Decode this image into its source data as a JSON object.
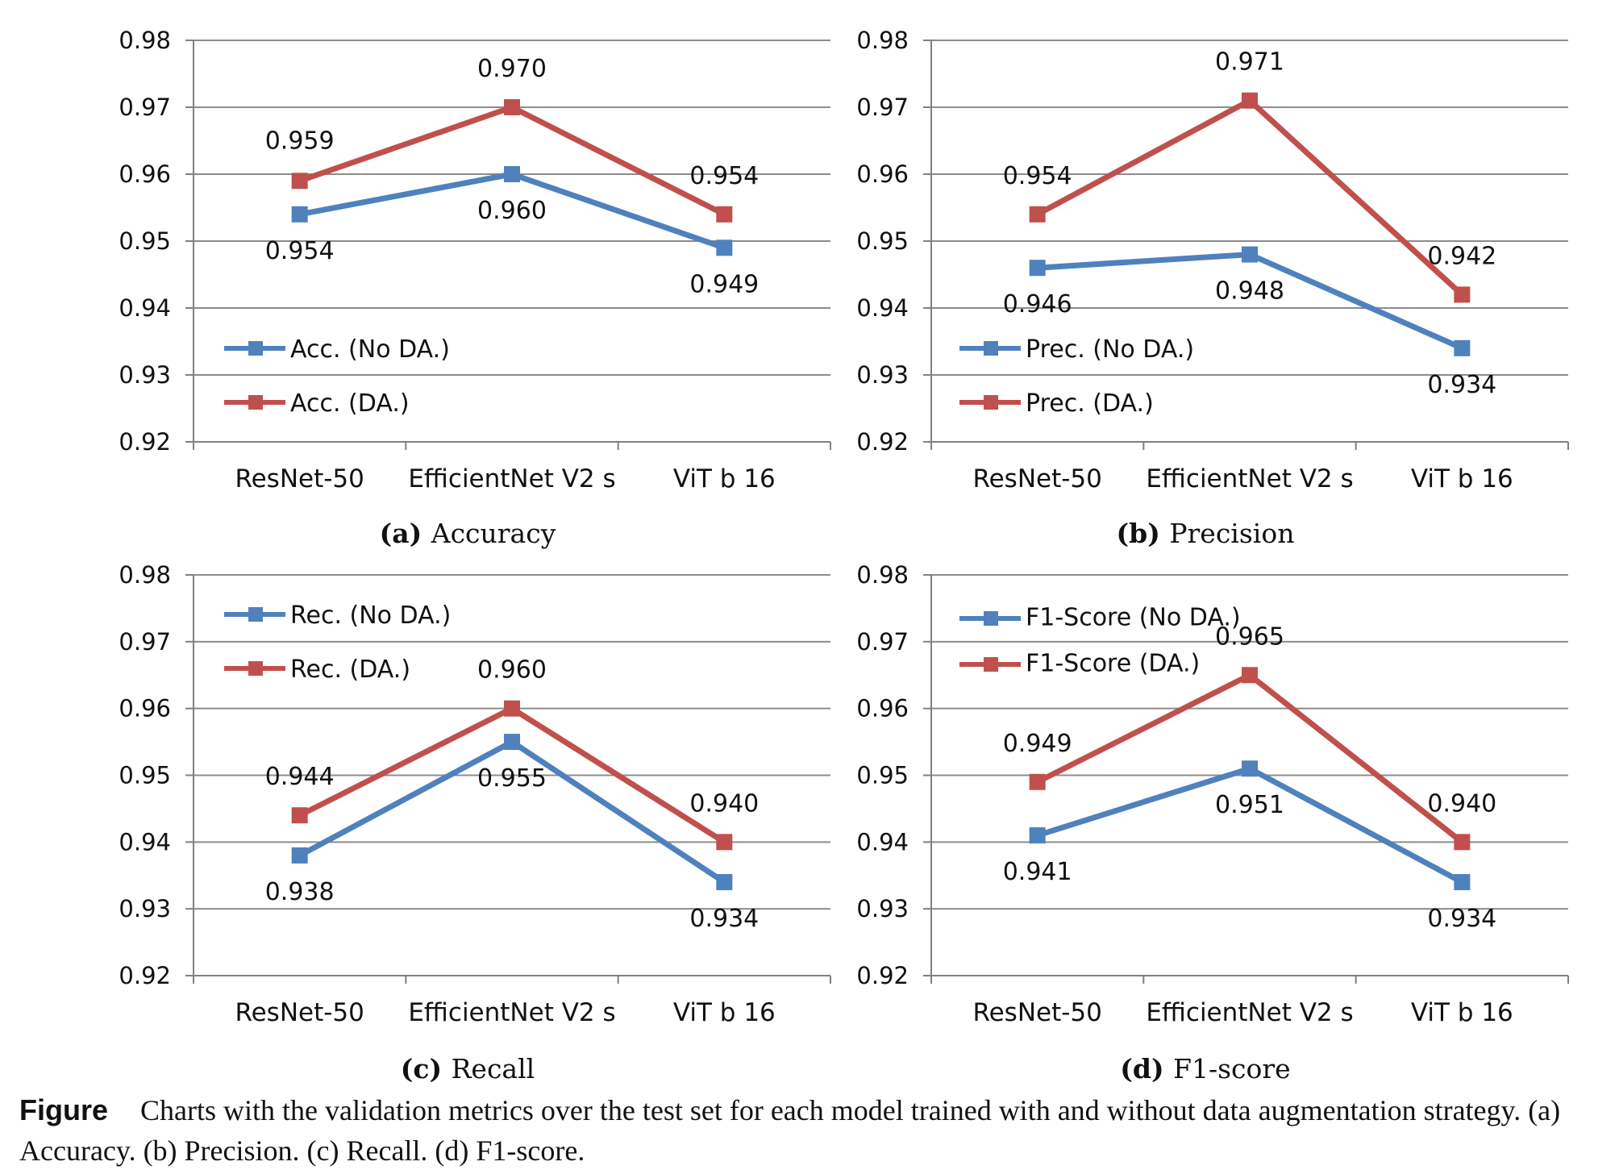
{
  "caption": {
    "lead": "Figure",
    "text": "Charts with the validation metrics over the test set for each model trained with and without data augmentation strategy. (a) Accuracy. (b) Precision. (c) Recall. (d) F1-score."
  },
  "colors": {
    "no_da": "#4f81bd",
    "da": "#c0504d",
    "grid": "#8c8c8c",
    "axis": "#808080"
  },
  "chart_data": [
    {
      "type": "line",
      "panel_label": "(a)",
      "panel_title": "Accuracy",
      "categories": [
        "ResNet-50",
        "EfficientNet V2 s",
        "ViT b 16"
      ],
      "ylim": [
        0.92,
        0.98
      ],
      "yticks": [
        "0.92",
        "0.93",
        "0.94",
        "0.95",
        "0.96",
        "0.97",
        "0.98"
      ],
      "grid": true,
      "legend": "left",
      "series": [
        {
          "name": "Acc. (No DA.)",
          "color": "#4f81bd",
          "values": [
            0.954,
            0.96,
            0.949
          ],
          "labels": [
            "0.954",
            "0.960",
            "0.949"
          ]
        },
        {
          "name": "Acc. (DA.)",
          "color": "#c0504d",
          "values": [
            0.959,
            0.97,
            0.954
          ],
          "labels": [
            "0.959",
            "0.970",
            "0.954"
          ]
        }
      ]
    },
    {
      "type": "line",
      "panel_label": "(b)",
      "panel_title": "Precision",
      "categories": [
        "ResNet-50",
        "EfficientNet V2 s",
        "ViT b 16"
      ],
      "ylim": [
        0.92,
        0.98
      ],
      "yticks": [
        "0.92",
        "0.93",
        "0.94",
        "0.95",
        "0.96",
        "0.97",
        "0.98"
      ],
      "grid": true,
      "legend": "left",
      "series": [
        {
          "name": "Prec.  (No DA.)",
          "color": "#4f81bd",
          "values": [
            0.946,
            0.948,
            0.934
          ],
          "labels": [
            "0.946",
            "0.948",
            "0.934"
          ]
        },
        {
          "name": "Prec. (DA.)",
          "color": "#c0504d",
          "values": [
            0.954,
            0.971,
            0.942
          ],
          "labels": [
            "0.954",
            "0.971",
            "0.942"
          ]
        }
      ]
    },
    {
      "type": "line",
      "panel_label": "(c)",
      "panel_title": "Recall",
      "categories": [
        "ResNet-50",
        "EfficientNet V2 s",
        "ViT b 16"
      ],
      "ylim": [
        0.92,
        0.98
      ],
      "yticks": [
        "0.92",
        "0.93",
        "0.94",
        "0.95",
        "0.96",
        "0.97",
        "0.98"
      ],
      "grid": true,
      "legend": "top-left",
      "series": [
        {
          "name": "Rec.  (No DA.)",
          "color": "#4f81bd",
          "values": [
            0.938,
            0.955,
            0.934
          ],
          "labels": [
            "0.938",
            "0.955",
            "0.934"
          ]
        },
        {
          "name": "Rec. (DA.)",
          "color": "#c0504d",
          "values": [
            0.944,
            0.96,
            0.94
          ],
          "labels": [
            "0.944",
            "0.960",
            "0.940"
          ]
        }
      ]
    },
    {
      "type": "line",
      "panel_label": "(d)",
      "panel_title": "F1-score",
      "categories": [
        "ResNet-50",
        "EfficientNet V2 s",
        "ViT b 16"
      ],
      "ylim": [
        0.92,
        0.98
      ],
      "yticks": [
        "0.92",
        "0.93",
        "0.94",
        "0.95",
        "0.96",
        "0.97",
        "0.98"
      ],
      "grid": true,
      "legend": "top-left",
      "series": [
        {
          "name": "F1-Score  (No DA.)",
          "color": "#4f81bd",
          "values": [
            0.941,
            0.951,
            0.934
          ],
          "labels": [
            "0.941",
            "0.951",
            "0.934"
          ]
        },
        {
          "name": "F1-Score (DA.)",
          "color": "#c0504d",
          "values": [
            0.949,
            0.965,
            0.94
          ],
          "labels": [
            "0.949",
            "0.965",
            "0.940"
          ]
        }
      ]
    }
  ]
}
